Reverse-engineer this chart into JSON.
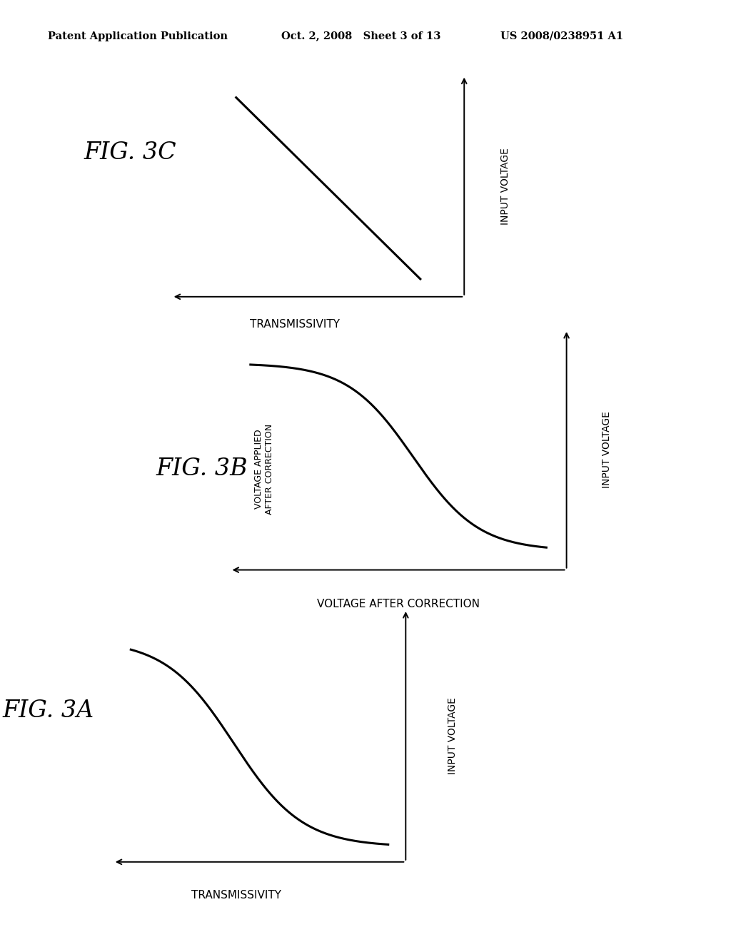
{
  "background_color": "#ffffff",
  "header_left": "Patent Application Publication",
  "header_center": "Oct. 2, 2008   Sheet 3 of 13",
  "header_right": "US 2008/0238951 A1",
  "fig3c": {
    "label": "FIG. 3C",
    "xlabel": "TRANSMISSIVITY",
    "ylabel": "INPUT VOLTAGE",
    "line_color": "#000000",
    "line_width": 2.2
  },
  "fig3b": {
    "label": "FIG. 3B",
    "xlabel": "VOLTAGE AFTER CORRECTION",
    "ylabel": "INPUT VOLTAGE",
    "ylabel2": "VOLTAGE APPLIED\nAFTER CORRECTION",
    "line_color": "#000000",
    "line_width": 2.2
  },
  "fig3a": {
    "label": "FIG. 3A",
    "xlabel": "TRANSMISSIVITY",
    "ylabel": "INPUT VOLTAGE",
    "line_color": "#000000",
    "line_width": 2.2
  }
}
